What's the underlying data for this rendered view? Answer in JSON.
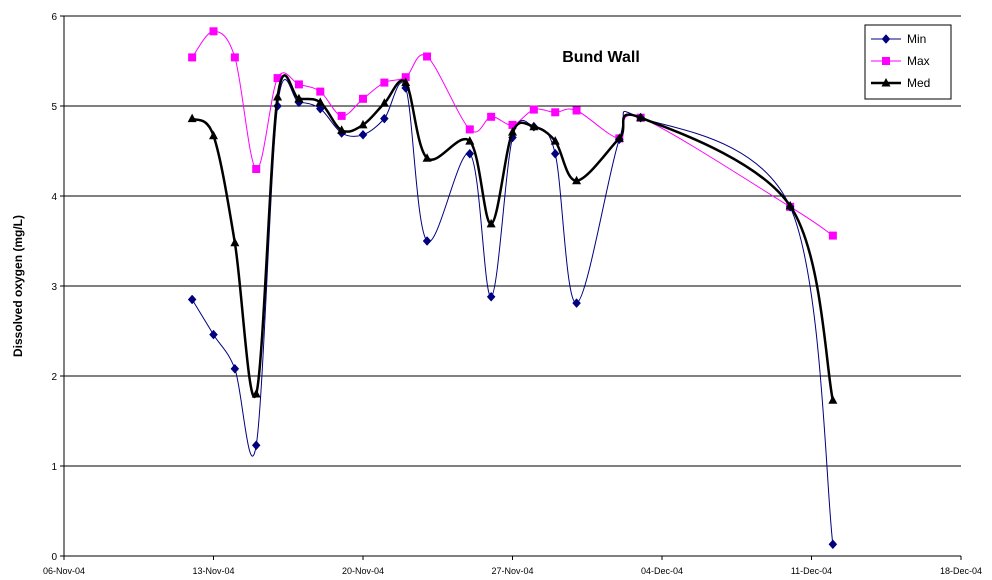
{
  "chart_data": {
    "type": "line",
    "title": "Bund Wall",
    "xlabel": "",
    "ylabel": "Dissolved oxygen (mg/L)",
    "ylim": [
      0,
      6
    ],
    "yticks": [
      0,
      1,
      2,
      3,
      4,
      5,
      6
    ],
    "xlim": [
      "2004-11-06",
      "2004-12-18"
    ],
    "xticks": [
      "06-Nov-04",
      "13-Nov-04",
      "20-Nov-04",
      "27-Nov-04",
      "04-Dec-04",
      "11-Dec-04",
      "18-Dec-04"
    ],
    "grid": "horizontal major",
    "legend_position": "top-right",
    "smooth": true,
    "series": [
      {
        "name": "Min",
        "color": "#000080",
        "marker": "diamond",
        "points": [
          [
            "2004-11-12",
            2.85
          ],
          [
            "2004-11-13",
            2.46
          ],
          [
            "2004-11-14",
            2.08
          ],
          [
            "2004-11-15",
            1.23
          ],
          [
            "2004-11-16",
            5.0
          ],
          [
            "2004-11-17",
            5.04
          ],
          [
            "2004-11-18",
            4.97
          ],
          [
            "2004-11-19",
            4.7
          ],
          [
            "2004-11-20",
            4.68
          ],
          [
            "2004-11-21",
            4.86
          ],
          [
            "2004-11-22",
            5.2
          ],
          [
            "2004-11-23",
            3.5
          ],
          [
            "2004-11-25",
            4.47
          ],
          [
            "2004-11-26",
            2.88
          ],
          [
            "2004-11-27",
            4.65
          ],
          [
            "2004-11-28",
            4.77
          ],
          [
            "2004-11-29",
            4.47
          ],
          [
            "2004-11-30",
            2.81
          ],
          [
            "2004-12-02",
            4.63
          ],
          [
            "2004-12-03",
            4.87
          ],
          [
            "2004-12-10",
            3.88
          ],
          [
            "2004-12-12",
            0.13
          ]
        ]
      },
      {
        "name": "Max",
        "color": "#FF00FF",
        "marker": "square",
        "points": [
          [
            "2004-11-12",
            5.54
          ],
          [
            "2004-11-13",
            5.83
          ],
          [
            "2004-11-14",
            5.54
          ],
          [
            "2004-11-15",
            4.3
          ],
          [
            "2004-11-16",
            5.31
          ],
          [
            "2004-11-17",
            5.24
          ],
          [
            "2004-11-18",
            5.16
          ],
          [
            "2004-11-19",
            4.89
          ],
          [
            "2004-11-20",
            5.08
          ],
          [
            "2004-11-21",
            5.26
          ],
          [
            "2004-11-22",
            5.32
          ],
          [
            "2004-11-23",
            5.55
          ],
          [
            "2004-11-25",
            4.74
          ],
          [
            "2004-11-26",
            4.88
          ],
          [
            "2004-11-27",
            4.79
          ],
          [
            "2004-11-28",
            4.96
          ],
          [
            "2004-11-29",
            4.93
          ],
          [
            "2004-11-30",
            4.95
          ],
          [
            "2004-12-02",
            4.64
          ],
          [
            "2004-12-03",
            4.87
          ],
          [
            "2004-12-10",
            3.88
          ],
          [
            "2004-12-12",
            3.56
          ]
        ]
      },
      {
        "name": "Med",
        "color": "#000000",
        "marker": "triangle",
        "points": [
          [
            "2004-11-12",
            4.86
          ],
          [
            "2004-11-13",
            4.67
          ],
          [
            "2004-11-14",
            3.48
          ],
          [
            "2004-11-15",
            1.8
          ],
          [
            "2004-11-16",
            5.1
          ],
          [
            "2004-11-17",
            5.08
          ],
          [
            "2004-11-18",
            5.04
          ],
          [
            "2004-11-19",
            4.73
          ],
          [
            "2004-11-20",
            4.79
          ],
          [
            "2004-11-21",
            5.03
          ],
          [
            "2004-11-22",
            5.26
          ],
          [
            "2004-11-23",
            4.42
          ],
          [
            "2004-11-25",
            4.61
          ],
          [
            "2004-11-26",
            3.69
          ],
          [
            "2004-11-27",
            4.71
          ],
          [
            "2004-11-28",
            4.77
          ],
          [
            "2004-11-29",
            4.61
          ],
          [
            "2004-11-30",
            4.17
          ],
          [
            "2004-12-02",
            4.64
          ],
          [
            "2004-12-03",
            4.87
          ],
          [
            "2004-12-10",
            3.89
          ],
          [
            "2004-12-12",
            1.73
          ]
        ]
      }
    ]
  }
}
